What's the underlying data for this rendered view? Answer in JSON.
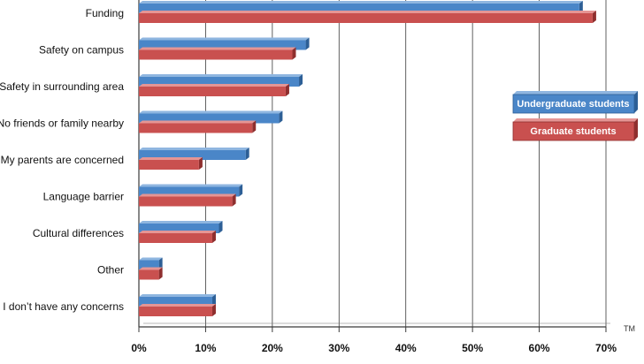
{
  "chart_data": {
    "type": "bar",
    "orientation": "horizontal",
    "categories": [
      "Funding",
      "Safety on campus",
      "Safety in surrounding area",
      "No friends or family nearby",
      "My parents are concerned",
      "Language barrier",
      "Cultural differences",
      "Other",
      "I don’t have any concerns"
    ],
    "series": [
      {
        "name": "Undergraduate students",
        "color": "#4a86c8",
        "values": [
          66,
          25,
          24,
          21,
          16,
          15,
          12,
          3,
          11
        ]
      },
      {
        "name": "Graduate students",
        "color": "#c9504f",
        "values": [
          68,
          23,
          22,
          17,
          9,
          14,
          11,
          3,
          11
        ]
      }
    ],
    "xlim": [
      0,
      70
    ],
    "xticks": [
      "0%",
      "10%",
      "20%",
      "30%",
      "40%",
      "50%",
      "60%",
      "70%"
    ],
    "grid": true,
    "legend_position": "right",
    "trademark": "TM"
  }
}
